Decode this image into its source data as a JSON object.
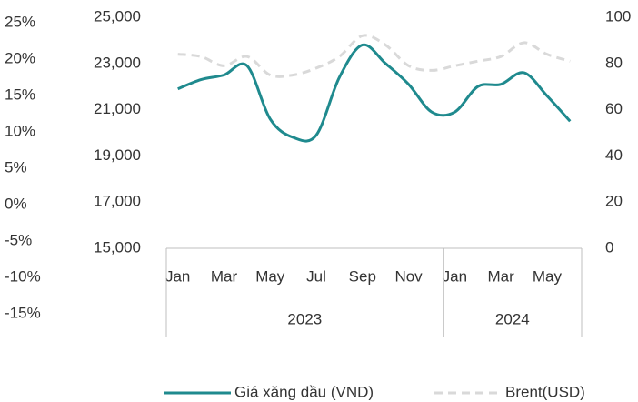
{
  "chart_data": {
    "type": "line",
    "categories": [
      "Jan",
      null,
      "Mar",
      null,
      "May",
      null,
      "Jul",
      null,
      "Sep",
      null,
      "Nov",
      null,
      "Jan",
      null,
      "Mar",
      null,
      "May",
      null
    ],
    "groups": [
      {
        "label": "2023",
        "count": 12
      },
      {
        "label": "2024",
        "count": 6
      }
    ],
    "series": [
      {
        "name": "Giá xăng dầu (VND)",
        "color": "#1f8a8e",
        "axis": "y",
        "dashed": false,
        "values": [
          21900,
          22300,
          22500,
          22900,
          20600,
          19800,
          19900,
          22400,
          23800,
          23000,
          22100,
          20900,
          20900,
          22000,
          22100,
          22600,
          21600,
          20500
        ]
      },
      {
        "name": "Brent(USD)",
        "color": "#d9d9d9",
        "axis": "y2",
        "dashed": true,
        "values": [
          84,
          83,
          79,
          83,
          75,
          75,
          78,
          83,
          92,
          88,
          79,
          77,
          79,
          81,
          83,
          89,
          84,
          81
        ]
      }
    ],
    "ylim": [
      15000,
      25000
    ],
    "yticks": [
      {
        "value": 15000,
        "label": "15,000"
      },
      {
        "value": 17000,
        "label": "17,000"
      },
      {
        "value": 19000,
        "label": "19,000"
      },
      {
        "value": 21000,
        "label": "21,000"
      },
      {
        "value": 23000,
        "label": "23,000"
      },
      {
        "value": 25000,
        "label": "25,000"
      }
    ],
    "y2lim": [
      0,
      100
    ],
    "y2ticks": [
      0,
      20,
      40,
      60,
      80,
      100
    ],
    "y3lim": [
      -15,
      25
    ],
    "y3ticks": [
      {
        "value": 25,
        "label": "25%"
      },
      {
        "value": 20,
        "label": "20%"
      },
      {
        "value": 15,
        "label": "15%"
      },
      {
        "value": 10,
        "label": "10%"
      },
      {
        "value": 5,
        "label": "5%"
      },
      {
        "value": 0,
        "label": "0%"
      },
      {
        "value": -5,
        "label": "-5%"
      },
      {
        "value": -10,
        "label": "-10%"
      },
      {
        "value": -15,
        "label": "-15%"
      }
    ],
    "grid": false,
    "legend": "bottom"
  }
}
